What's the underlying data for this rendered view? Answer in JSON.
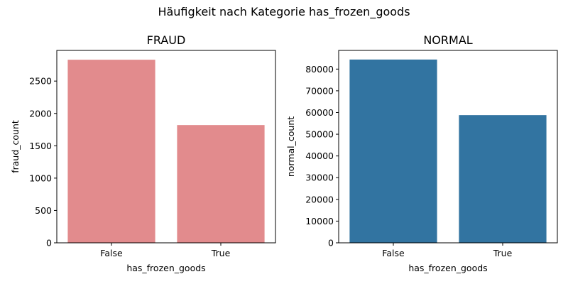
{
  "suptitle": "Häufigkeit nach Kategorie has_frozen_goods",
  "colors": {
    "fraud": "#e28b8d",
    "normal": "#3274a1"
  },
  "chart_data": [
    {
      "type": "bar",
      "title": "FRAUD",
      "xlabel": "has_frozen_goods",
      "ylabel": "fraud_count",
      "categories": [
        "False",
        "True"
      ],
      "values": [
        2830,
        1820
      ],
      "ylim": [
        0,
        2974
      ],
      "yticks": [
        0,
        500,
        1000,
        1500,
        2000,
        2500
      ],
      "color": "#e28b8d"
    },
    {
      "type": "bar",
      "title": "NORMAL",
      "xlabel": "has_frozen_goods",
      "ylabel": "normal_count",
      "categories": [
        "False",
        "True"
      ],
      "values": [
        84400,
        58800
      ],
      "ylim": [
        0,
        88600
      ],
      "yticks": [
        0,
        10000,
        20000,
        30000,
        40000,
        50000,
        60000,
        70000,
        80000
      ],
      "color": "#3274a1"
    }
  ]
}
